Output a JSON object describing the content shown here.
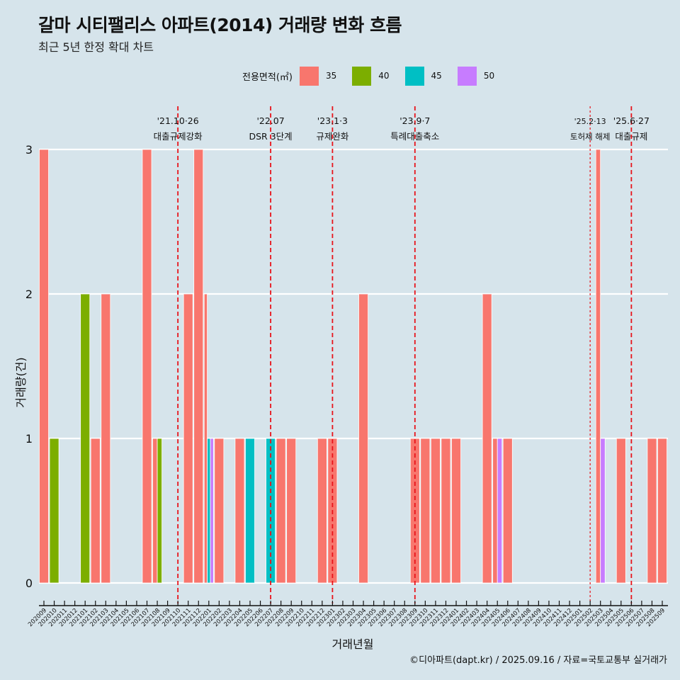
{
  "title": "갈마 시티팰리스 아파트(2014) 거래량 변화 흐름",
  "subtitle": "최근 5년 한정 확대 차트",
  "legend": {
    "title": "전용면적(㎡)",
    "items": [
      {
        "label": "35",
        "color": "#F8766D"
      },
      {
        "label": "40",
        "color": "#7CAE00"
      },
      {
        "label": "45",
        "color": "#00BFC4"
      },
      {
        "label": "50",
        "color": "#C77CFF"
      }
    ]
  },
  "caption": "©디아파트(dapt.kr) / 2025.09.16 / 자료=국토교통부 실거래가",
  "chart_data": {
    "type": "bar",
    "title": "갈마 시티팰리스 아파트(2014) 거래량 변화 흐름",
    "subtitle": "최근 5년 한정 확대 차트",
    "xlabel": "거래년월",
    "ylabel": "거래량(건)",
    "ylim": [
      0,
      3
    ],
    "yticks": [
      0,
      1,
      2,
      3
    ],
    "grid": true,
    "legend_position": "top",
    "categories": [
      "202009",
      "202010",
      "202011",
      "202012",
      "202101",
      "202102",
      "202103",
      "202104",
      "202105",
      "202106",
      "202107",
      "202108",
      "202109",
      "202110",
      "202111",
      "202112",
      "202201",
      "202202",
      "202203",
      "202204",
      "202205",
      "202206",
      "202207",
      "202208",
      "202209",
      "202210",
      "202211",
      "202212",
      "202301",
      "202302",
      "202303",
      "202304",
      "202305",
      "202306",
      "202307",
      "202308",
      "202309",
      "202310",
      "202311",
      "202312",
      "202401",
      "202402",
      "202403",
      "202404",
      "202405",
      "202406",
      "202407",
      "202408",
      "202409",
      "202410",
      "202411",
      "202412",
      "202501",
      "202502",
      "202503",
      "202504",
      "202505",
      "202506",
      "202507",
      "202508",
      "202509"
    ],
    "series_keys": [
      "35",
      "40",
      "45",
      "50"
    ],
    "bars": [
      {
        "month": "202009",
        "values": {
          "35": 3
        }
      },
      {
        "month": "202010",
        "values": {
          "40": 1
        }
      },
      {
        "month": "202101",
        "values": {
          "40": 2
        }
      },
      {
        "month": "202102",
        "values": {
          "35": 1
        }
      },
      {
        "month": "202103",
        "values": {
          "35": 2
        }
      },
      {
        "month": "202107",
        "values": {
          "35": 3
        }
      },
      {
        "month": "202108",
        "values": {
          "35": 1,
          "40": 1
        }
      },
      {
        "month": "202111",
        "values": {
          "35": 2
        }
      },
      {
        "month": "202112",
        "values": {
          "35": 3
        }
      },
      {
        "month": "202201",
        "values": {
          "35": 2,
          "45": 1,
          "50": 1
        }
      },
      {
        "month": "202202",
        "values": {
          "35": 1
        }
      },
      {
        "month": "202204",
        "values": {
          "35": 1
        }
      },
      {
        "month": "202205",
        "values": {
          "45": 1
        }
      },
      {
        "month": "202207",
        "values": {
          "45": 1
        }
      },
      {
        "month": "202208",
        "values": {
          "35": 1
        }
      },
      {
        "month": "202209",
        "values": {
          "35": 1
        }
      },
      {
        "month": "202212",
        "values": {
          "35": 1
        }
      },
      {
        "month": "202301",
        "values": {
          "35": 1
        }
      },
      {
        "month": "202304",
        "values": {
          "35": 2
        }
      },
      {
        "month": "202309",
        "values": {
          "35": 1
        }
      },
      {
        "month": "202310",
        "values": {
          "35": 1
        }
      },
      {
        "month": "202311",
        "values": {
          "35": 1
        }
      },
      {
        "month": "202312",
        "values": {
          "35": 1
        }
      },
      {
        "month": "202401",
        "values": {
          "35": 1
        }
      },
      {
        "month": "202404",
        "values": {
          "35": 2
        }
      },
      {
        "month": "202405",
        "values": {
          "35": 1,
          "50": 1
        }
      },
      {
        "month": "202406",
        "values": {
          "35": 1
        }
      },
      {
        "month": "202503",
        "values": {
          "35": 3,
          "50": 1
        }
      },
      {
        "month": "202505",
        "values": {
          "35": 1
        }
      },
      {
        "month": "202508",
        "values": {
          "35": 1
        }
      },
      {
        "month": "202509",
        "values": {
          "35": 1
        }
      }
    ],
    "annotations": [
      {
        "month": "202110",
        "date": "'21.10·26",
        "label": "대출규제강화",
        "style": "dashed"
      },
      {
        "month": "202207",
        "date": "'22.07",
        "label": "DSR 3단계",
        "style": "dashed"
      },
      {
        "month": "202301",
        "date": "'23.1·3",
        "label": "규제완화",
        "style": "dashed"
      },
      {
        "month": "202309",
        "date": "'23.9·7",
        "label": "특례대출축소",
        "style": "dashed"
      },
      {
        "month": "202502",
        "date": "'25.2·13",
        "label": "토허제 해제",
        "style": "dotted"
      },
      {
        "month": "202506",
        "date": "'25.6·27",
        "label": "대출규제",
        "style": "dashed"
      }
    ],
    "annotation_color": "#E8131A"
  }
}
